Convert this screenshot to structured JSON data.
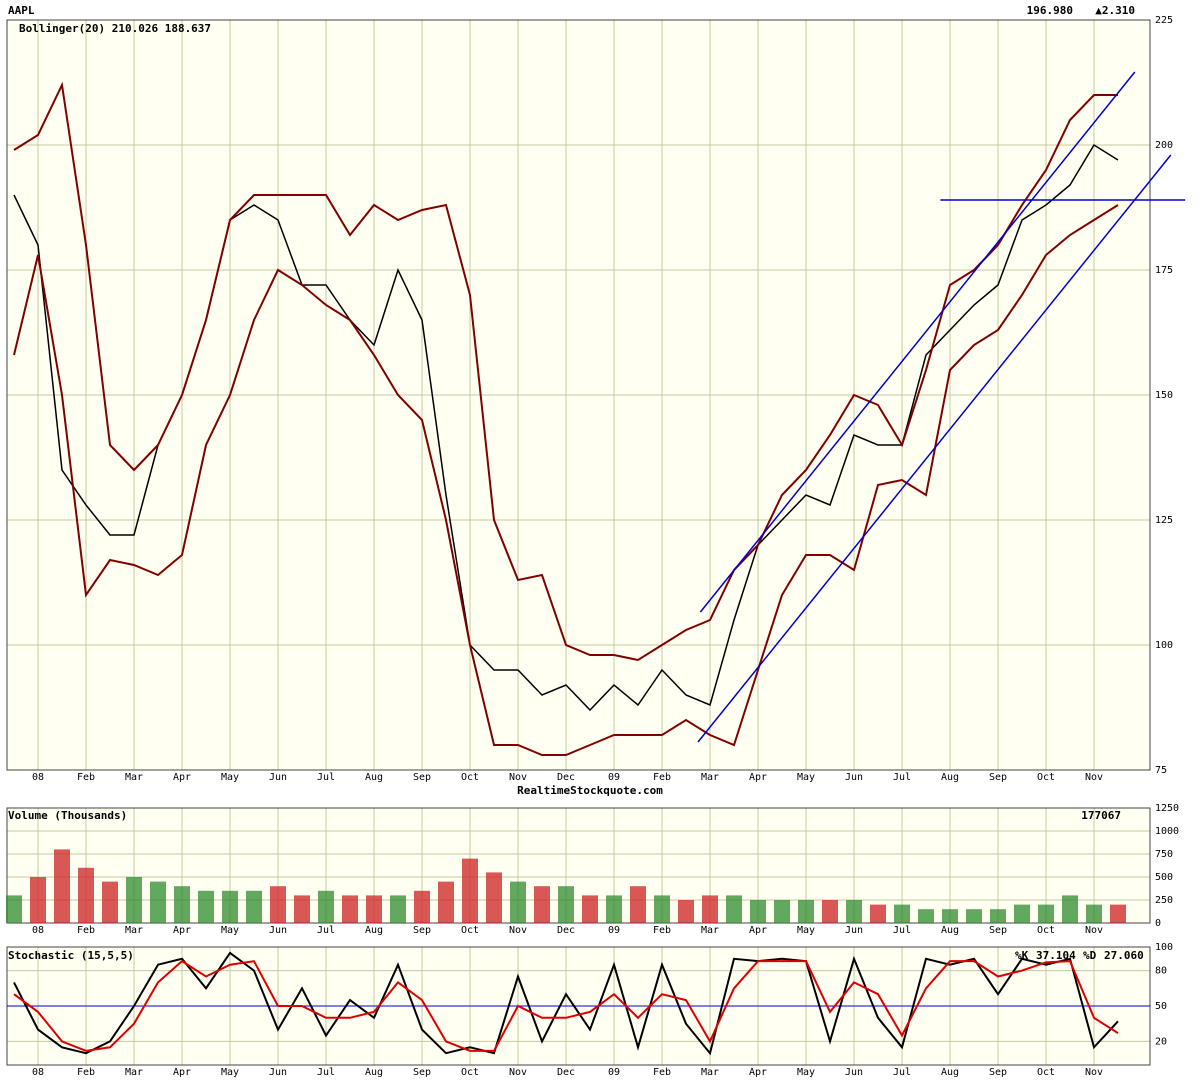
{
  "chart_data": [
    {
      "type": "price",
      "title": "AAPL",
      "quote": "196.980",
      "change": "▲2.310",
      "quote_color": "#000000",
      "change_color": "#008000",
      "indicator": "Bollinger(20) 210.026 188.637",
      "indicator_color": "#800000",
      "watermark": "RealtimeStockquote.com",
      "categories": [
        null,
        "08",
        null,
        "Feb",
        null,
        "Mar",
        null,
        "Apr",
        null,
        "May",
        null,
        "Jun",
        null,
        "Jul",
        null,
        "Aug",
        null,
        "Sep",
        null,
        "Oct",
        null,
        "Nov",
        null,
        "Dec",
        null,
        "09",
        null,
        "Feb",
        null,
        "Mar",
        null,
        "Apr",
        null,
        "May",
        null,
        "Jun",
        null,
        "Jul",
        null,
        "Aug",
        null,
        "Sep",
        null,
        "Oct",
        null,
        "Nov",
        null
      ],
      "series": [
        {
          "color": "#000000",
          "values": [
            190,
            180,
            135,
            128,
            122,
            122,
            140,
            150,
            165,
            185,
            188,
            185,
            172,
            172,
            165,
            160,
            175,
            165,
            130,
            100,
            95,
            95,
            90,
            92,
            87,
            92,
            88,
            95,
            90,
            88,
            105,
            120,
            125,
            130,
            128,
            142,
            140,
            140,
            158,
            163,
            168,
            172,
            185,
            188,
            192,
            200,
            197
          ]
        },
        {
          "color": "#800000",
          "values": [
            199,
            202,
            212,
            180,
            140,
            135,
            140,
            150,
            165,
            185,
            190,
            190,
            190,
            190,
            182,
            188,
            185,
            187,
            188,
            170,
            125,
            113,
            114,
            100,
            98,
            98,
            97,
            100,
            103,
            105,
            115,
            120,
            130,
            135,
            142,
            150,
            148,
            140,
            155,
            172,
            175,
            180,
            188,
            195,
            205,
            210,
            210
          ]
        },
        {
          "color": "#800000",
          "values": [
            158,
            178,
            150,
            110,
            117,
            116,
            114,
            118,
            140,
            150,
            165,
            175,
            172,
            168,
            165,
            158,
            150,
            145,
            125,
            100,
            80,
            80,
            78,
            78,
            80,
            82,
            82,
            82,
            85,
            82,
            80,
            95,
            110,
            118,
            118,
            115,
            132,
            133,
            130,
            155,
            160,
            163,
            170,
            178,
            182,
            185,
            188
          ]
        }
      ],
      "trendline_color": "#0000cc",
      "trendlines": [
        {
          "x": [
            28.6,
            46.7
          ],
          "y": [
            106.6,
            214.6
          ]
        },
        {
          "x": [
            28.5,
            48.2
          ],
          "y": [
            80.6,
            198
          ]
        },
        {
          "x": [
            38.6,
            48.8
          ],
          "y": [
            189,
            189
          ]
        }
      ],
      "ylim": [
        75,
        225
      ],
      "yticks": [
        75,
        100,
        125,
        150,
        175,
        200,
        225
      ],
      "grid": true
    },
    {
      "type": "volume",
      "title": "Volume (Thousands)",
      "last_value": 177067,
      "up_color": "#2e8b2e",
      "down_color": "#cc2020",
      "categories": [
        null,
        "08",
        null,
        "Feb",
        null,
        "Mar",
        null,
        "Apr",
        null,
        "May",
        null,
        "Jun",
        null,
        "Jul",
        null,
        "Aug",
        null,
        "Sep",
        null,
        "Oct",
        null,
        "Nov",
        null,
        "Dec",
        null,
        "09",
        null,
        "Feb",
        null,
        "Mar",
        null,
        "Apr",
        null,
        "May",
        null,
        "Jun",
        null,
        "Jul",
        null,
        "Aug",
        null,
        "Sep",
        null,
        "Oct",
        null,
        "Nov",
        null
      ],
      "values": [
        300,
        500,
        800,
        600,
        450,
        500,
        450,
        400,
        350,
        350,
        350,
        400,
        300,
        350,
        300,
        300,
        300,
        350,
        450,
        700,
        550,
        450,
        400,
        400,
        300,
        300,
        400,
        300,
        250,
        300,
        300,
        250,
        250,
        250,
        250,
        250,
        200,
        200,
        150,
        150,
        150,
        150,
        200,
        200,
        300,
        200,
        200
      ],
      "ylim": [
        0,
        1250
      ],
      "yticks": [
        0,
        250,
        500,
        750,
        1000,
        1250
      ],
      "grid": true
    },
    {
      "type": "stochastic",
      "title": "Stochastic (15,5,5)",
      "hline": 50,
      "hline_color": "#0000cc",
      "categories": [
        null,
        "08",
        null,
        "Feb",
        null,
        "Mar",
        null,
        "Apr",
        null,
        "May",
        null,
        "Jun",
        null,
        "Jul",
        null,
        "Aug",
        null,
        "Sep",
        null,
        "Oct",
        null,
        "Nov",
        null,
        "Dec",
        null,
        "09",
        null,
        "Feb",
        null,
        "Mar",
        null,
        "Apr",
        null,
        "May",
        null,
        "Jun",
        null,
        "Jul",
        null,
        "Aug",
        null,
        "Sep",
        null,
        "Oct",
        null,
        "Nov",
        null
      ],
      "series": [
        {
          "name": "%K",
          "last_label": "37.104",
          "color": "#000000",
          "values": [
            70,
            30,
            15,
            10,
            20,
            50,
            85,
            90,
            65,
            95,
            80,
            30,
            65,
            25,
            55,
            40,
            85,
            30,
            10,
            15,
            10,
            75,
            20,
            60,
            30,
            85,
            15,
            85,
            35,
            10,
            90,
            88,
            90,
            88,
            20,
            90,
            40,
            15,
            90,
            85,
            90,
            60,
            90,
            85,
            90,
            15,
            37
          ]
        },
        {
          "name": "%D",
          "last_label": "27.060",
          "color": "#dd0000",
          "values": [
            60,
            45,
            20,
            12,
            15,
            35,
            70,
            88,
            75,
            85,
            88,
            50,
            50,
            40,
            40,
            45,
            70,
            55,
            20,
            12,
            12,
            50,
            40,
            40,
            45,
            60,
            40,
            60,
            55,
            20,
            65,
            88,
            88,
            88,
            45,
            70,
            60,
            25,
            65,
            88,
            88,
            75,
            80,
            87,
            88,
            40,
            27
          ]
        }
      ],
      "ylim": [
        0,
        100
      ],
      "yticks": [
        20,
        50,
        80,
        100
      ],
      "grid": true
    }
  ]
}
